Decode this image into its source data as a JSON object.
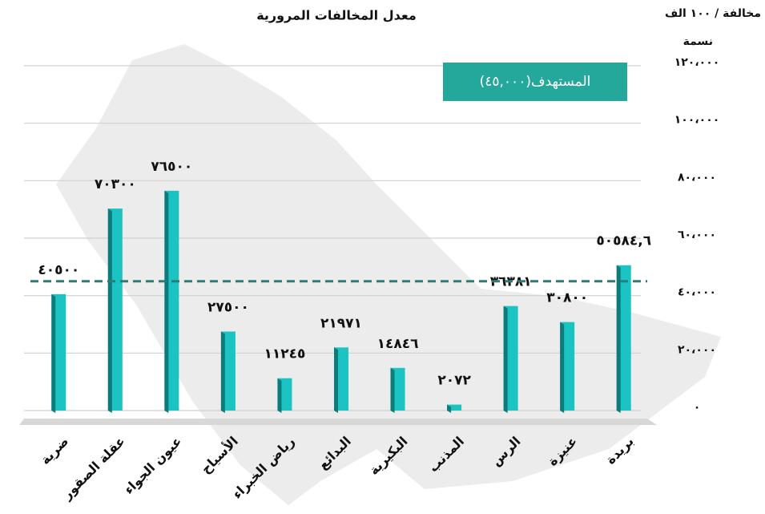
{
  "chart_data": {
    "type": "bar",
    "title": "معدل المخالفات المرورية",
    "y_label": "مخالفة / ١٠٠ الف",
    "y_label_2": "نسمة",
    "categories": [
      "ضرية",
      "عقلة الصقور",
      "عيون الجواء",
      "الأسياح",
      "رياض الخبراء",
      "البدائع",
      "البكيرية",
      "المذنب",
      "الرس",
      "عنيزة",
      "بريدة"
    ],
    "values": [
      40500,
      70300,
      76500,
      27500,
      11245,
      21971,
      14846,
      2072,
      36381,
      30800,
      50584.6
    ],
    "value_labels": [
      "٤٠٥٠٠",
      "٧٠٣٠٠",
      "٧٦٥٠٠",
      "٢٧٥٠٠",
      "١١٢٤٥",
      "٢١٩٧١",
      "١٤٨٤٦",
      "٢٠٧٢",
      "٣٦٣٨١",
      "٣٠٨٠٠",
      "٥٠٥٨٤,٦"
    ],
    "color": "#1cc3c3",
    "side_color": "#0e7b7b",
    "ylim": [
      0,
      120000
    ],
    "yticks": [
      {
        "value": 0,
        "label": "٠"
      },
      {
        "value": 20000,
        "label": "٢٠،٠٠٠"
      },
      {
        "value": 40000,
        "label": "٤٠،٠٠٠"
      },
      {
        "value": 60000,
        "label": "٦٠،٠٠٠"
      },
      {
        "value": 80000,
        "label": "٨٠،٠٠٠"
      },
      {
        "value": 100000,
        "label": "١٠٠،٠٠٠"
      },
      {
        "value": 120000,
        "label": "١٢٠،٠٠٠"
      }
    ],
    "grid": true,
    "target": {
      "value": 45000,
      "label": "المستهدف(٤٥,٠٠٠)",
      "color": "#2a7f74"
    }
  }
}
